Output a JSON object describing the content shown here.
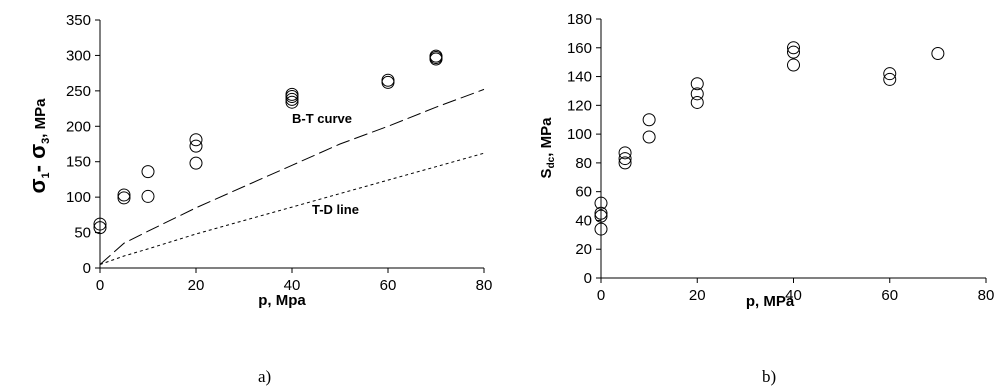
{
  "chart_data": [
    {
      "type": "scatter",
      "panel_label": "a)",
      "xlabel": "p, Mpa",
      "ylabel": {
        "base": "σ",
        "sub1": "1",
        "mid": "- σ",
        "sub2": "3",
        "unit": ", MPa"
      },
      "xlim": [
        0,
        80
      ],
      "ylim": [
        0,
        350
      ],
      "xticks": [
        "0",
        "20",
        "40",
        "60",
        "80"
      ],
      "yticks": [
        "0",
        "50",
        "100",
        "150",
        "200",
        "250",
        "300",
        "350"
      ],
      "grid": false,
      "series": [
        {
          "style": "open-circle",
          "points": [
            [
              0,
              57
            ],
            [
              0,
              62
            ],
            [
              5,
              99
            ],
            [
              5,
              103
            ],
            [
              10,
              101
            ],
            [
              10,
              136
            ],
            [
              20,
              148
            ],
            [
              20,
              172
            ],
            [
              20,
              181
            ],
            [
              40,
              234
            ],
            [
              40,
              238
            ],
            [
              40,
              242
            ],
            [
              40,
              245
            ],
            [
              60,
              262
            ],
            [
              60,
              265
            ],
            [
              70,
              295
            ],
            [
              70,
              297
            ],
            [
              70,
              299
            ]
          ]
        },
        {
          "name": "B-T curve",
          "style": "long-dash",
          "points": [
            [
              0,
              5
            ],
            [
              5,
              35
            ],
            [
              10,
              52
            ],
            [
              20,
              85
            ],
            [
              30,
              115
            ],
            [
              40,
              145
            ],
            [
              50,
              175
            ],
            [
              60,
              200
            ],
            [
              70,
              227
            ],
            [
              80,
              252
            ]
          ]
        },
        {
          "name": "T-D line",
          "style": "short-dash",
          "points": [
            [
              0,
              5
            ],
            [
              5,
              17
            ],
            [
              10,
              27
            ],
            [
              20,
              48
            ],
            [
              30,
              67
            ],
            [
              40,
              86
            ],
            [
              50,
              105
            ],
            [
              60,
              124
            ],
            [
              70,
              143
            ],
            [
              80,
              162
            ]
          ]
        }
      ],
      "annotations": [
        {
          "text": "B-T curve",
          "at": [
            40,
            212
          ]
        },
        {
          "text": "T-D line",
          "at": [
            44,
            90
          ]
        }
      ]
    },
    {
      "type": "scatter",
      "panel_label": "b)",
      "xlabel": "p, MPa",
      "ylabel": {
        "base": "S",
        "sub": "dc",
        "unit": ", MPa"
      },
      "xlim": [
        0,
        80
      ],
      "ylim": [
        0,
        180
      ],
      "xticks": [
        "0",
        "20",
        "40",
        "60",
        "80"
      ],
      "yticks": [
        "0",
        "20",
        "40",
        "60",
        "80",
        "100",
        "120",
        "140",
        "160",
        "180"
      ],
      "grid": false,
      "series": [
        {
          "style": "open-circle",
          "points": [
            [
              0,
              34
            ],
            [
              0,
              43
            ],
            [
              0,
              45
            ],
            [
              0,
              52
            ],
            [
              5,
              80
            ],
            [
              5,
              83
            ],
            [
              5,
              87
            ],
            [
              10,
              98
            ],
            [
              10,
              110
            ],
            [
              20,
              122
            ],
            [
              20,
              128
            ],
            [
              20,
              135
            ],
            [
              40,
              148
            ],
            [
              40,
              157
            ],
            [
              40,
              160
            ],
            [
              60,
              138
            ],
            [
              60,
              142
            ],
            [
              70,
              156
            ]
          ]
        }
      ]
    }
  ]
}
